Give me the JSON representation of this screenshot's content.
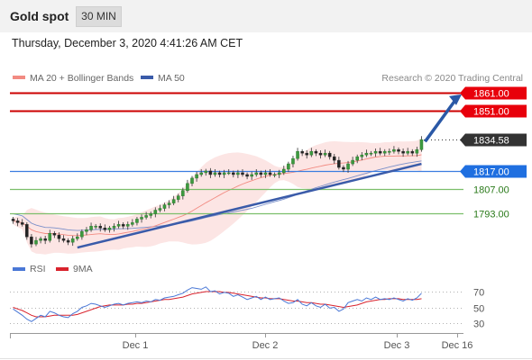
{
  "header": {
    "title": "Gold spot",
    "timeframe": "30 MIN"
  },
  "datetime": "Thursday, December 3, 2020 4:41:26 AM CET",
  "chart_data": {
    "type": "candlestick",
    "legend": [
      {
        "label": "MA 20 + Bollinger Bands",
        "color": "#f28b82"
      },
      {
        "label": "MA 50",
        "color": "#3a5ba9"
      }
    ],
    "copyright": "Research © 2020 Trading Central",
    "ylim": [
      1770,
      1866
    ],
    "levels": [
      {
        "label": "1861.00",
        "value": 1861.0,
        "color": "#cc0000",
        "box_color": "#e8000b",
        "text_color": "#ffffff",
        "kind": "resistance"
      },
      {
        "label": "1851.00",
        "value": 1851.0,
        "color": "#cc0000",
        "box_color": "#e8000b",
        "text_color": "#ffffff",
        "kind": "resistance"
      },
      {
        "label": "1834.58",
        "value": 1834.58,
        "color": "#222222",
        "box_color": "#333333",
        "text_color": "#ffffff",
        "kind": "last"
      },
      {
        "label": "1817.00",
        "value": 1817.0,
        "color": "#3b7de0",
        "box_color": "#1f6fe0",
        "text_color": "#ffffff",
        "kind": "pivot"
      },
      {
        "label": "1807.00",
        "value": 1807.0,
        "color": "#7cbf6b",
        "box_color": "",
        "text_color": "#2a7a1a",
        "kind": "support"
      },
      {
        "label": "1793.00",
        "value": 1793.0,
        "color": "#7cbf6b",
        "box_color": "",
        "text_color": "#2a7a1a",
        "kind": "support"
      }
    ],
    "x_ticks": [
      "Dec 1",
      "Dec 2",
      "Dec 3",
      "Dec 16"
    ],
    "close": [
      1789,
      1788,
      1787,
      1780,
      1776,
      1778,
      1779,
      1778,
      1782,
      1781,
      1779,
      1778,
      1777,
      1779,
      1780,
      1783,
      1784,
      1786,
      1786,
      1785,
      1784,
      1785,
      1786,
      1787,
      1786,
      1787,
      1788,
      1790,
      1791,
      1792,
      1793,
      1795,
      1796,
      1798,
      1799,
      1801,
      1803,
      1806,
      1810,
      1813,
      1815,
      1816,
      1817,
      1815,
      1816,
      1815,
      1816,
      1816,
      1815,
      1816,
      1815,
      1814,
      1815,
      1816,
      1815,
      1816,
      1815,
      1815,
      1816,
      1818,
      1821,
      1824,
      1828,
      1827,
      1826,
      1828,
      1827,
      1826,
      1827,
      1825,
      1823,
      1819,
      1818,
      1821,
      1823,
      1825,
      1826,
      1827,
      1827,
      1828,
      1827,
      1828,
      1828,
      1829,
      1828,
      1827,
      1828,
      1827,
      1829,
      1834.58
    ],
    "rsi": {
      "legend": [
        {
          "label": "RSI",
          "color": "#4a78d6"
        },
        {
          "label": "9MA",
          "color": "#d9232d"
        }
      ],
      "ylim": [
        20,
        80
      ],
      "y_ticks": [
        "70",
        "50",
        "30"
      ],
      "rsi": [
        48,
        44,
        40,
        35,
        32,
        36,
        40,
        38,
        45,
        43,
        40,
        38,
        37,
        42,
        45,
        50,
        52,
        55,
        54,
        52,
        50,
        52,
        54,
        55,
        53,
        55,
        56,
        57,
        56,
        58,
        57,
        60,
        59,
        62,
        63,
        64,
        66,
        68,
        72,
        75,
        74,
        73,
        76,
        70,
        71,
        67,
        69,
        68,
        64,
        66,
        63,
        60,
        62,
        64,
        60,
        63,
        60,
        61,
        62,
        58,
        55,
        56,
        60,
        54,
        52,
        56,
        52,
        50,
        54,
        49,
        50,
        45,
        48,
        56,
        58,
        60,
        58,
        62,
        60,
        63,
        60,
        61,
        60,
        62,
        60,
        58,
        61,
        59,
        62,
        68
      ],
      "ma": [
        50,
        48,
        46,
        43,
        40,
        38,
        38,
        38,
        39,
        40,
        40,
        40,
        40,
        40,
        41,
        43,
        45,
        47,
        49,
        51,
        52,
        53,
        53,
        53,
        53,
        54,
        54,
        55,
        55,
        56,
        57,
        58,
        59,
        60,
        60,
        61,
        62,
        63,
        65,
        67,
        68,
        69,
        70,
        70,
        70,
        70,
        69,
        69,
        68,
        67,
        66,
        65,
        64,
        63,
        62,
        62,
        61,
        61,
        61,
        60,
        59,
        58,
        58,
        57,
        56,
        56,
        55,
        54,
        54,
        53,
        52,
        51,
        50,
        51,
        52,
        53,
        55,
        57,
        58,
        59,
        60,
        60,
        61,
        61,
        61,
        60,
        60,
        60,
        60,
        61
      ]
    }
  }
}
